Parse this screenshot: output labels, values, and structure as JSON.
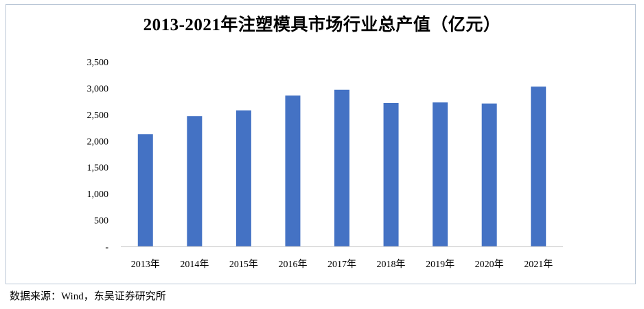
{
  "chart_data": {
    "type": "bar",
    "title": "2013-2021年注塑模具市场行业总产值（亿元）",
    "categories": [
      "2013年",
      "2014年",
      "2015年",
      "2016年",
      "2017年",
      "2018年",
      "2019年",
      "2020年",
      "2021年"
    ],
    "values": [
      2130,
      2470,
      2580,
      2860,
      2970,
      2720,
      2730,
      2710,
      3030
    ],
    "ylim": [
      0,
      3500
    ],
    "yticks": [
      0,
      500,
      1000,
      1500,
      2000,
      2500,
      3000,
      3500
    ],
    "ytick_labels": [
      "-",
      "500",
      "1,000",
      "1,500",
      "2,000",
      "2,500",
      "3,000",
      "3,500"
    ],
    "bar_color": "#4472c4",
    "grid": false,
    "xlabel": "",
    "ylabel": ""
  },
  "source": "数据来源：Wind，东吴证券研究所"
}
